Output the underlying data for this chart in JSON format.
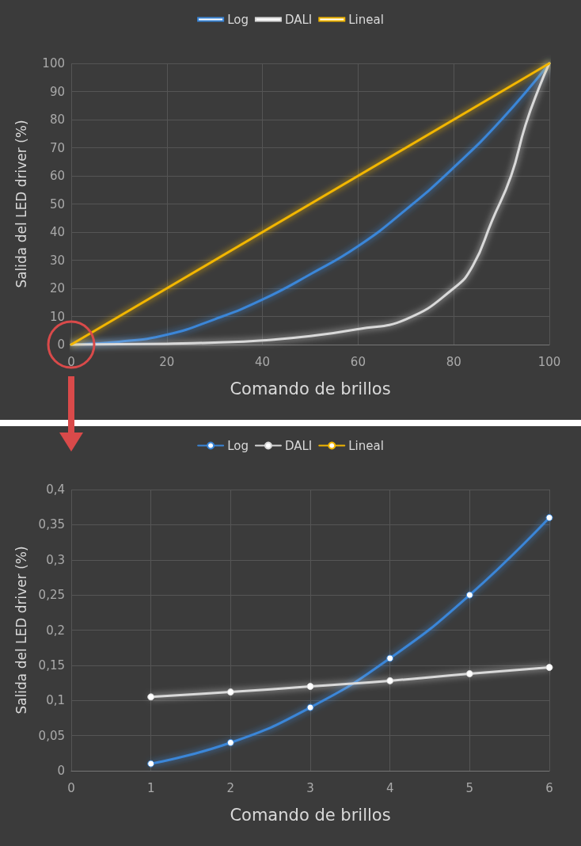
{
  "chart_data": [
    {
      "type": "line",
      "xlabel": "Comando de brillos",
      "ylabel": "Salida del LED driver (%)",
      "xlim": [
        0,
        100
      ],
      "xticks": [
        0,
        20,
        40,
        60,
        80,
        100
      ],
      "ylim": [
        0,
        100
      ],
      "yticks": [
        0,
        10,
        20,
        30,
        40,
        50,
        60,
        70,
        80,
        90,
        100
      ],
      "grid": true,
      "legend": "top",
      "marker": "none",
      "series": [
        {
          "name": "Log",
          "color": "#3a86d8",
          "x": [
            0,
            10,
            20,
            30,
            40,
            50,
            60,
            70,
            80,
            90,
            100
          ],
          "values": [
            0,
            1,
            3.5,
            9,
            16,
            25,
            35,
            48,
            63,
            80,
            100
          ]
        },
        {
          "name": "DALI",
          "color": "#d9d9d9",
          "x": [
            0,
            20,
            30,
            40,
            50,
            60,
            70,
            80,
            84,
            88,
            92,
            95,
            98,
            100
          ],
          "values": [
            0,
            0.3,
            0.7,
            1.5,
            3,
            5.5,
            9,
            20,
            28,
            44,
            60,
            78,
            92,
            100
          ]
        },
        {
          "name": "Lineal",
          "color": "#f2b600",
          "x": [
            0,
            100
          ],
          "values": [
            0,
            100
          ]
        }
      ]
    },
    {
      "type": "line",
      "xlabel": "Comando de brillos",
      "ylabel": "Salida del LED driver (%)",
      "xlim": [
        0,
        6
      ],
      "xticks": [
        0,
        1,
        2,
        3,
        4,
        5,
        6
      ],
      "ylim": [
        0,
        0.4
      ],
      "yticks": [
        0,
        {
          "value": 0.05,
          "label": "0,05"
        },
        {
          "value": 0.1,
          "label": "0,1"
        },
        {
          "value": 0.15,
          "label": "0,15"
        },
        {
          "value": 0.2,
          "label": "0,2"
        },
        {
          "value": 0.25,
          "label": "0,25"
        },
        {
          "value": 0.3,
          "label": "0,3"
        },
        {
          "value": 0.35,
          "label": "0,35"
        },
        {
          "value": 0.4,
          "label": "0,4"
        }
      ],
      "grid": true,
      "legend": "top",
      "marker": "circle",
      "series": [
        {
          "name": "Log",
          "color": "#3a86d8",
          "x": [
            1,
            2,
            3,
            4,
            5,
            6
          ],
          "values": [
            0.01,
            0.04,
            0.09,
            0.16,
            0.25,
            0.36
          ]
        },
        {
          "name": "DALI",
          "color": "#d9d9d9",
          "x": [
            1,
            2,
            3,
            4,
            5,
            6
          ],
          "values": [
            0.105,
            0.112,
            0.12,
            0.128,
            0.138,
            0.147
          ]
        },
        {
          "name": "Lineal",
          "color": "#f2b600"
        }
      ]
    }
  ]
}
